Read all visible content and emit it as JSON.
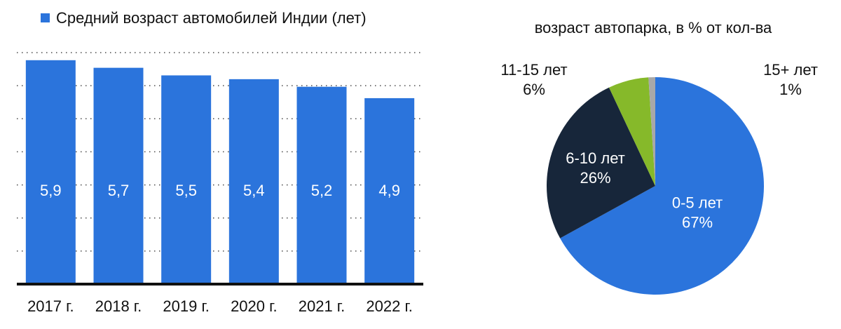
{
  "chart_data": [
    {
      "type": "bar",
      "legend_label": "Средний возраст автомобилей Индии (лет)",
      "legend_position": "top-left",
      "categories": [
        "2017 г.",
        "2018 г.",
        "2019 г.",
        "2020 г.",
        "2021 г.",
        "2022 г."
      ],
      "values": [
        5.9,
        5.7,
        5.5,
        5.4,
        5.2,
        4.9
      ],
      "data_labels": [
        "5,9",
        "5,7",
        "5,5",
        "5,4",
        "5,2",
        "4,9"
      ],
      "ylim": [
        0,
        6.1
      ],
      "grid": true,
      "bar_color": "#2b74dc",
      "label_color": "#ffffff"
    },
    {
      "type": "pie",
      "title": "возраст автопарка, в % от кол-ва",
      "slices": [
        {
          "name": "0-5 лет",
          "value": 67,
          "pct_label": "67%",
          "color": "#2b74dc"
        },
        {
          "name": "6-10 лет",
          "value": 26,
          "pct_label": "26%",
          "color": "#17263a"
        },
        {
          "name": "11-15 лет",
          "value": 6,
          "pct_label": "6%",
          "color": "#86b92a"
        },
        {
          "name": "15+ лет",
          "value": 1,
          "pct_label": "1%",
          "color": "#a8a8a8"
        }
      ]
    }
  ]
}
